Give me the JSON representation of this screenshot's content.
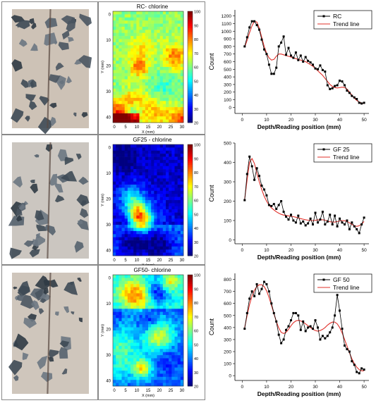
{
  "panels": [
    {
      "heatmap_title": "RC- chlorine",
      "photo_tone": "#cdc2b6",
      "colorbar_ticks": [
        "100",
        "90",
        "80",
        "70",
        "60",
        "50",
        "40",
        "30",
        "20"
      ],
      "y_ticks": [
        "0",
        "10",
        "20",
        "30",
        "40"
      ],
      "x_ticks": [
        "0",
        "5",
        "10",
        "15",
        "20",
        "25",
        "30"
      ],
      "x_label": "X (mm)",
      "y_label": "Y (mm)",
      "level": "high"
    },
    {
      "heatmap_title": "GF25 - chlorine",
      "photo_tone": "#cbc6c0",
      "colorbar_ticks": [
        "100",
        "90",
        "80",
        "70",
        "60",
        "50",
        "40",
        "30",
        "20"
      ],
      "y_ticks": [
        "0",
        "10",
        "20",
        "30",
        "40"
      ],
      "x_ticks": [
        "0",
        "5",
        "10",
        "15",
        "20",
        "25",
        "30"
      ],
      "x_label": "X (mm)",
      "y_label": "Y (mm)",
      "level": "low"
    },
    {
      "heatmap_title": "GF50- chlorine",
      "photo_tone": "#cfc6bc",
      "colorbar_ticks": [
        "100",
        "90",
        "80",
        "70",
        "60",
        "50",
        "40",
        "30",
        "20"
      ],
      "y_ticks": [
        "0",
        "10",
        "20",
        "30",
        "40"
      ],
      "x_ticks": [
        "0",
        "5",
        "10",
        "15",
        "20",
        "25",
        "30"
      ],
      "x_label": "X (mm)",
      "y_label": "Y (mm)",
      "level": "mid"
    }
  ],
  "colors": {
    "data_line": "#000000",
    "trend_line": "#e0302a"
  },
  "chart_data": [
    {
      "type": "line",
      "xlabel": "Depth/Reading  position (mm)",
      "ylabel": "Count",
      "xlim": [
        -3,
        52
      ],
      "ylim": [
        -80,
        1280
      ],
      "xticks": [
        0,
        10,
        20,
        30,
        40,
        50
      ],
      "yticks": [
        0,
        100,
        200,
        300,
        400,
        500,
        600,
        700,
        800,
        900,
        1000,
        1100,
        1200
      ],
      "legend_position": "top-right",
      "series": [
        {
          "name": "RC",
          "style": "data",
          "x": [
            1,
            2,
            3,
            4,
            5,
            6,
            7,
            8,
            9,
            10,
            11,
            12,
            13,
            14,
            15,
            16,
            17,
            18,
            19,
            20,
            21,
            22,
            23,
            24,
            25,
            26,
            27,
            28,
            29,
            30,
            31,
            32,
            33,
            34,
            35,
            36,
            37,
            38,
            39,
            40,
            41,
            42,
            43,
            44,
            45,
            46,
            47,
            48,
            49,
            50
          ],
          "y": [
            800,
            920,
            1050,
            1130,
            1130,
            1080,
            1020,
            890,
            760,
            700,
            560,
            440,
            440,
            520,
            800,
            850,
            930,
            690,
            780,
            680,
            650,
            720,
            620,
            680,
            600,
            660,
            610,
            590,
            560,
            510,
            500,
            550,
            490,
            470,
            290,
            240,
            250,
            280,
            290,
            350,
            340,
            290,
            220,
            190,
            150,
            130,
            110,
            60,
            50,
            60
          ]
        },
        {
          "name": "Trend line",
          "style": "trend",
          "x": [
            1,
            2,
            3,
            4,
            5,
            6,
            7,
            8,
            9,
            10,
            11,
            12,
            13,
            14,
            15,
            16,
            17,
            18,
            19,
            20,
            21,
            22,
            23,
            24,
            25,
            26,
            27,
            28,
            29,
            30,
            31,
            32,
            33,
            34,
            35,
            36,
            37,
            38,
            39,
            40,
            41,
            42,
            43,
            44,
            45,
            46,
            47,
            48,
            49,
            50
          ],
          "y": [
            790,
            880,
            980,
            1070,
            1130,
            1120,
            1040,
            920,
            800,
            710,
            650,
            620,
            630,
            670,
            700,
            700,
            690,
            680,
            670,
            660,
            650,
            640,
            630,
            620,
            610,
            600,
            580,
            560,
            540,
            510,
            480,
            450,
            420,
            380,
            340,
            300,
            275,
            260,
            255,
            260,
            265,
            260,
            240,
            200,
            160,
            120,
            90,
            70,
            55,
            50
          ]
        }
      ]
    },
    {
      "type": "line",
      "xlabel": "Depth/Reading  position (mm)",
      "ylabel": "Count",
      "xlim": [
        -3,
        52
      ],
      "ylim": [
        -20,
        500
      ],
      "xticks": [
        0,
        10,
        20,
        30,
        40,
        50
      ],
      "yticks": [
        0,
        100,
        200,
        300,
        400,
        500
      ],
      "legend_position": "top-right",
      "series": [
        {
          "name": "GF 25",
          "style": "data",
          "x": [
            1,
            2,
            3,
            4,
            5,
            6,
            7,
            8,
            9,
            10,
            11,
            12,
            13,
            14,
            15,
            16,
            17,
            18,
            19,
            20,
            21,
            22,
            23,
            24,
            25,
            26,
            27,
            28,
            29,
            30,
            31,
            32,
            33,
            34,
            35,
            36,
            37,
            38,
            39,
            40,
            41,
            42,
            43,
            44,
            45,
            46,
            47,
            48,
            49,
            50
          ],
          "y": [
            205,
            340,
            430,
            380,
            310,
            370,
            330,
            280,
            260,
            230,
            180,
            175,
            185,
            160,
            180,
            200,
            145,
            120,
            105,
            130,
            100,
            90,
            125,
            85,
            95,
            75,
            85,
            110,
            80,
            140,
            90,
            105,
            145,
            80,
            95,
            130,
            80,
            125,
            70,
            110,
            90,
            80,
            100,
            55,
            90,
            70,
            55,
            35,
            80,
            115
          ]
        },
        {
          "name": "Trend line",
          "style": "trend",
          "x": [
            1,
            2,
            3,
            4,
            5,
            6,
            7,
            8,
            9,
            10,
            11,
            12,
            13,
            14,
            15,
            16,
            17,
            18,
            19,
            20,
            21,
            22,
            23,
            24,
            25,
            26,
            27,
            28,
            29,
            30,
            31,
            32,
            33,
            34,
            35,
            36,
            37,
            38,
            39,
            40,
            41,
            42,
            43,
            44,
            45,
            46,
            47,
            48,
            49,
            50
          ],
          "y": [
            210,
            310,
            400,
            420,
            395,
            345,
            300,
            260,
            225,
            200,
            180,
            165,
            155,
            145,
            138,
            132,
            128,
            126,
            124,
            122,
            120,
            117,
            113,
            110,
            107,
            104,
            102,
            100,
            100,
            101,
            103,
            104,
            104,
            102,
            98,
            94,
            92,
            92,
            95,
            98,
            100,
            99,
            95,
            88,
            80,
            73,
            70,
            73,
            82,
            95
          ]
        }
      ]
    },
    {
      "type": "line",
      "xlabel": "Depth/Reading  position (mm)",
      "ylabel": "Count",
      "xlim": [
        -3,
        52
      ],
      "ylim": [
        -40,
        850
      ],
      "xticks": [
        0,
        10,
        20,
        30,
        40,
        50
      ],
      "yticks": [
        0,
        100,
        200,
        300,
        400,
        500,
        600,
        700,
        800
      ],
      "legend_position": "top-right",
      "series": [
        {
          "name": "GF 50",
          "style": "data",
          "x": [
            1,
            2,
            3,
            4,
            5,
            6,
            7,
            8,
            9,
            10,
            11,
            12,
            13,
            14,
            15,
            16,
            17,
            18,
            19,
            20,
            21,
            22,
            23,
            24,
            25,
            26,
            27,
            28,
            29,
            30,
            31,
            32,
            33,
            34,
            35,
            36,
            37,
            38,
            39,
            40,
            41,
            42,
            43,
            44,
            45,
            46,
            47,
            48,
            49,
            50
          ],
          "y": [
            390,
            520,
            640,
            700,
            660,
            760,
            680,
            720,
            780,
            760,
            700,
            600,
            520,
            450,
            340,
            270,
            300,
            380,
            410,
            460,
            520,
            520,
            500,
            380,
            450,
            370,
            400,
            410,
            390,
            460,
            400,
            300,
            330,
            310,
            330,
            360,
            400,
            500,
            670,
            540,
            390,
            250,
            220,
            200,
            120,
            90,
            30,
            20,
            60,
            50
          ]
        },
        {
          "name": "Trend line",
          "style": "trend",
          "x": [
            1,
            2,
            3,
            4,
            5,
            6,
            7,
            8,
            9,
            10,
            11,
            12,
            13,
            14,
            15,
            16,
            17,
            18,
            19,
            20,
            21,
            22,
            23,
            24,
            25,
            26,
            27,
            28,
            29,
            30,
            31,
            32,
            33,
            34,
            35,
            36,
            37,
            38,
            39,
            40,
            41,
            42,
            43,
            44,
            45,
            46,
            47,
            48,
            49,
            50
          ],
          "y": [
            400,
            500,
            590,
            660,
            710,
            740,
            755,
            755,
            740,
            705,
            650,
            585,
            515,
            450,
            395,
            360,
            350,
            360,
            385,
            415,
            440,
            455,
            460,
            455,
            445,
            430,
            415,
            400,
            385,
            375,
            370,
            375,
            385,
            400,
            420,
            435,
            445,
            445,
            430,
            400,
            355,
            300,
            245,
            190,
            140,
            100,
            70,
            50,
            40,
            40
          ]
        }
      ]
    }
  ]
}
